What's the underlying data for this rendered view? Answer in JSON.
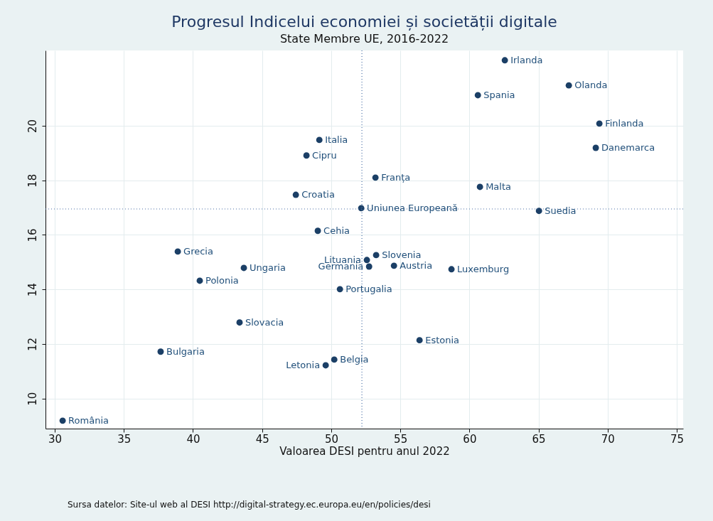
{
  "chart_data": {
    "type": "scatter",
    "title": "Progresul Indicelui economiei și societății digitale",
    "subtitle": "State Membre UE, 2016-2022",
    "xlabel": "Valoarea DESI pentru anul 2022",
    "x": [
      30.57,
      37.66,
      38.9,
      40.49,
      43.68,
      43.37,
      47.44,
      48.21,
      49.14,
      49.03,
      49.6,
      50.22,
      50.63,
      52.17,
      52.58,
      52.74,
      53.25,
      53.2,
      54.54,
      56.39,
      58.7,
      60.61,
      60.76,
      62.56,
      65.03,
      67.19,
      69.4,
      69.14
    ],
    "series": [
      {
        "color": "#1b3f66",
        "values": [
          9.19,
          11.72,
          15.39,
          14.32,
          14.79,
          12.79,
          17.47,
          18.91,
          19.48,
          16.15,
          11.22,
          11.43,
          14.01,
          16.98,
          15.08,
          14.84,
          15.26,
          18.1,
          14.87,
          12.14,
          14.74,
          21.12,
          17.76,
          22.4,
          16.88,
          21.48,
          20.08,
          19.19
        ],
        "value_labels": [
          "România",
          "Bulgaria",
          "Grecia",
          "Polonia",
          "Ungaria",
          "Slovacia",
          "Croatia",
          "Cipru",
          "Italia",
          "Cehia",
          "Letonia",
          "Belgia",
          "Portugalia",
          "Uniunea Europeană",
          "Lituania",
          "Germania",
          "Slovenia",
          "Franța",
          "Austria",
          "Estonia",
          "Luxemburg",
          "Spania",
          "Malta",
          "Irlanda",
          "Suedia",
          "Olanda",
          "Finlanda",
          "Danemarca"
        ]
      }
    ],
    "marker": "circle",
    "xlim": [
      29.33,
      75.46
    ],
    "ylim": [
      8.9,
      22.76
    ],
    "xticks": [
      30,
      35,
      40,
      45,
      50,
      55,
      60,
      65,
      70,
      75
    ],
    "yticks": [
      10,
      12,
      14,
      16,
      18,
      20
    ],
    "grid": true,
    "ref_lines": [
      {
        "axis": "x",
        "value": 52.22,
        "color": "#4a6fa5",
        "line_style": "dotted"
      },
      {
        "axis": "y",
        "value": 16.95,
        "color": "#4a6fa5",
        "line_style": "dotted"
      }
    ],
    "annotations": [
      "Sursa datelor: Site-ul web al DESI http://digital-strategy.ec.europa.eu/en/policies/desi"
    ]
  }
}
